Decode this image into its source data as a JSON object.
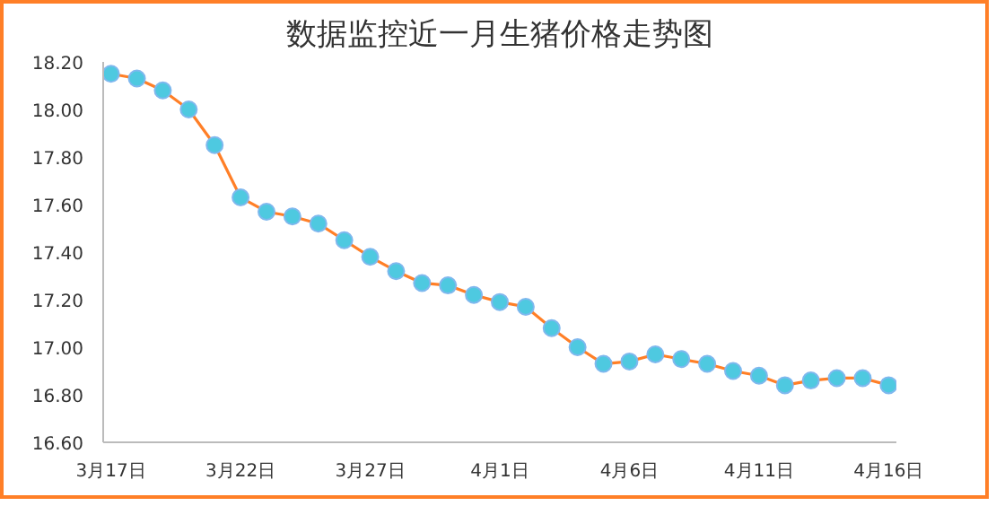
{
  "chart_data": {
    "type": "line",
    "title": "数据监控近一月生猪价格走势图",
    "categories": [
      "3月17日",
      null,
      null,
      null,
      null,
      "3月22日",
      null,
      null,
      null,
      null,
      "3月27日",
      null,
      null,
      null,
      null,
      "4月1日",
      null,
      null,
      null,
      null,
      "4月6日",
      null,
      null,
      null,
      null,
      "4月11日",
      null,
      null,
      null,
      null,
      "4月16日"
    ],
    "series": [
      {
        "color": "#ff7f27",
        "values": [
          18.15,
          18.13,
          18.08,
          18.0,
          17.85,
          17.63,
          17.57,
          17.55,
          17.52,
          17.45,
          17.38,
          17.32,
          17.27,
          17.26,
          17.22,
          17.19,
          17.17,
          17.08,
          17.0,
          16.93,
          16.94,
          16.97,
          16.95,
          16.93,
          16.9,
          16.88,
          16.84,
          16.86,
          16.87,
          16.87,
          16.84
        ]
      }
    ],
    "ylim": [
      16.6,
      18.2
    ],
    "yticks": [
      {
        "value": 16.6,
        "label": "16.60"
      },
      {
        "value": 16.8,
        "label": "16.80"
      },
      {
        "value": 17.0,
        "label": "17.00"
      },
      {
        "value": 17.2,
        "label": "17.20"
      },
      {
        "value": 17.4,
        "label": "17.40"
      },
      {
        "value": 17.6,
        "label": "17.60"
      },
      {
        "value": 17.8,
        "label": "17.80"
      },
      {
        "value": 18.0,
        "label": "18.00"
      },
      {
        "value": 18.2,
        "label": "18.20"
      }
    ],
    "marker": "circle",
    "line_style": "solid",
    "grid": false
  }
}
